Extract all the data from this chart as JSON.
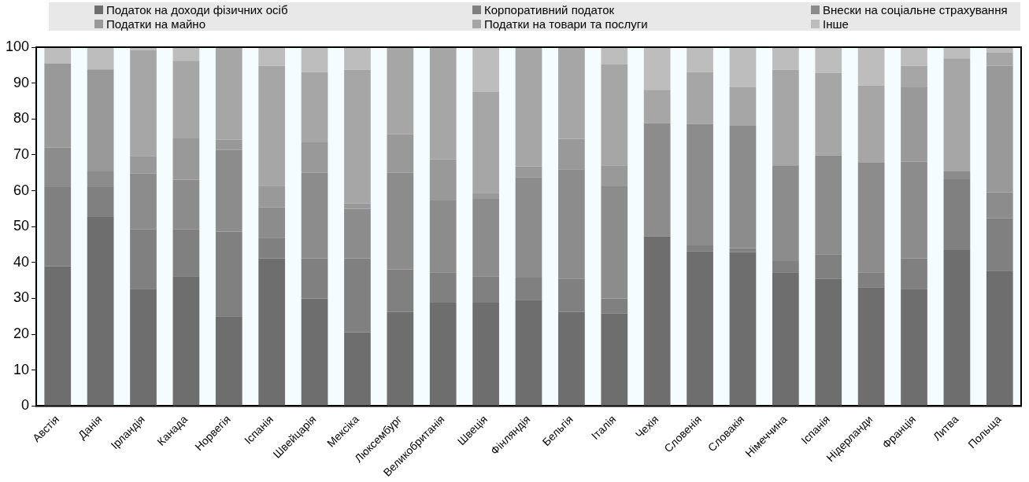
{
  "chart_data": {
    "type": "bar",
    "stacked": true,
    "legend": "top",
    "grid": false,
    "categories": [
      "Австія",
      "Данія",
      "Ірландія",
      "Канада",
      "Норвегія",
      "Іспанія",
      "Швейцарія",
      "Мексіка",
      "Люксембург",
      "Великобританія",
      "Швеція",
      "Фінляндія",
      "Бельгія",
      "Італія",
      "Чехія",
      "Словенія",
      "Словакія",
      "Німеччина",
      "Іспанія",
      "Нідерланди",
      "Франція",
      "Литва",
      "Польща"
    ],
    "ylim": [
      0,
      100
    ],
    "yticks": [
      0,
      10,
      20,
      30,
      40,
      50,
      60,
      70,
      80,
      90,
      100
    ],
    "series": [
      {
        "name": "Податок на доходи фізичних осіб",
        "color": "#6e6e6e",
        "values": [
          39,
          52.7,
          32.7,
          36.2,
          25,
          41.2,
          30,
          20.6,
          26.2,
          28.8,
          28.8,
          29.6,
          26.2,
          25.8,
          47.3,
          43.1,
          42.9,
          37.3,
          35.4,
          33.1,
          32.7,
          43.5,
          37.7
        ]
      },
      {
        "name": "Корпоративний податок",
        "color": "#808080",
        "values": [
          22,
          8.3,
          16.5,
          13,
          23.6,
          5.7,
          11.2,
          20.6,
          11.9,
          8.5,
          7.4,
          6.2,
          9.2,
          4.2,
          0,
          1.7,
          1.1,
          3.1,
          6.9,
          4.2,
          8.5,
          19.7,
          14.6
        ]
      },
      {
        "name": "Внески на соціальне страхування",
        "color": "#8c8c8c",
        "values": [
          11,
          4.4,
          15.6,
          13.9,
          22.8,
          8.5,
          23.8,
          13.8,
          26.9,
          20,
          21.5,
          28,
          30.6,
          31.2,
          31.5,
          33.8,
          34.1,
          26.7,
          27.5,
          30.5,
          26.9,
          2.2,
          7.3
        ]
      },
      {
        "name": "Податки на майно",
        "color": "#999999",
        "values": [
          23.5,
          28.4,
          4.8,
          11.5,
          2.8,
          6,
          8.5,
          1.5,
          10.8,
          11.5,
          1.7,
          3,
          8.5,
          5.9,
          0,
          0,
          0,
          0,
          0,
          0,
          20.7,
          0,
          35.2
        ]
      },
      {
        "name": "Податки на товари та послуги",
        "color": "#a6a6a6",
        "values": [
          0,
          0,
          29.6,
          21.6,
          25.8,
          33.4,
          19.6,
          37.2,
          24.2,
          31.2,
          28.1,
          33.2,
          25.5,
          28.1,
          9.3,
          14.5,
          10.7,
          26.6,
          23.1,
          21.6,
          6,
          31.5,
          3.7
        ]
      },
      {
        "name": "Інше",
        "color": "#bdbdbd",
        "values": [
          4.5,
          6.2,
          0.8,
          3.8,
          0,
          5.2,
          6.9,
          6.3,
          0,
          0,
          12.5,
          0,
          0,
          4.8,
          11.9,
          6.9,
          11.2,
          6.3,
          7.1,
          10.6,
          5.2,
          3.1,
          1.5
        ]
      }
    ]
  }
}
